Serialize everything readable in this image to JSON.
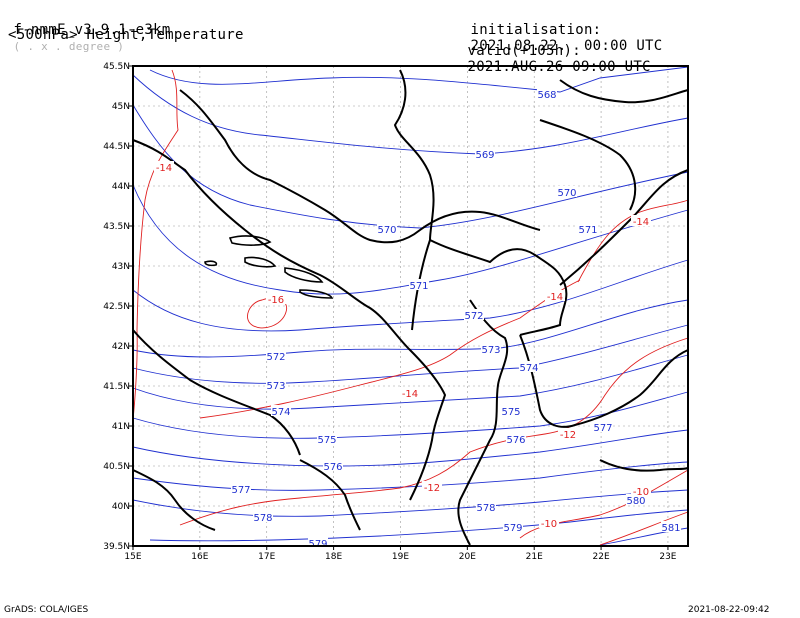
{
  "header": {
    "model_name": "f-nmmE_v3.9.1-e3km",
    "grid_note": "( . x . degree )",
    "level_product": "<500hPa> Height,Temperature",
    "init_label": "initialisation:",
    "init_value": "2021.08.22.  00:00 UTC",
    "valid_label": "valid(+105h):",
    "valid_value": "2021.AUG.26 09:00 UTC"
  },
  "footer": {
    "credit": "GrADS: COLA/IGES",
    "timestamp": "2021-08-22-09:42"
  },
  "map": {
    "lon_range": [
      15,
      23.3
    ],
    "lat_range": [
      39.5,
      45.5
    ],
    "lon_ticks": [
      "15E",
      "16E",
      "17E",
      "18E",
      "19E",
      "20E",
      "21E",
      "22E",
      "23E"
    ],
    "lat_ticks": [
      "39.5N",
      "40N",
      "40.5N",
      "41N",
      "41.5N",
      "42N",
      "42.5N",
      "43N",
      "43.5N",
      "44N",
      "44.5N",
      "45N",
      "45.5N"
    ],
    "height_color": "#2030d0",
    "temperature_color": "#e02020",
    "border_color": "#000000",
    "height_labels": [
      "568",
      "569",
      "570",
      "570",
      "571",
      "571",
      "572",
      "572",
      "573",
      "573",
      "574",
      "574",
      "575",
      "575",
      "576",
      "576",
      "577",
      "577",
      "578",
      "578",
      "579",
      "579",
      "580",
      "581"
    ],
    "temperature_labels": [
      "-14",
      "-16",
      "-14",
      "-14",
      "-14",
      "-12",
      "-12",
      "-10",
      "-10"
    ]
  }
}
